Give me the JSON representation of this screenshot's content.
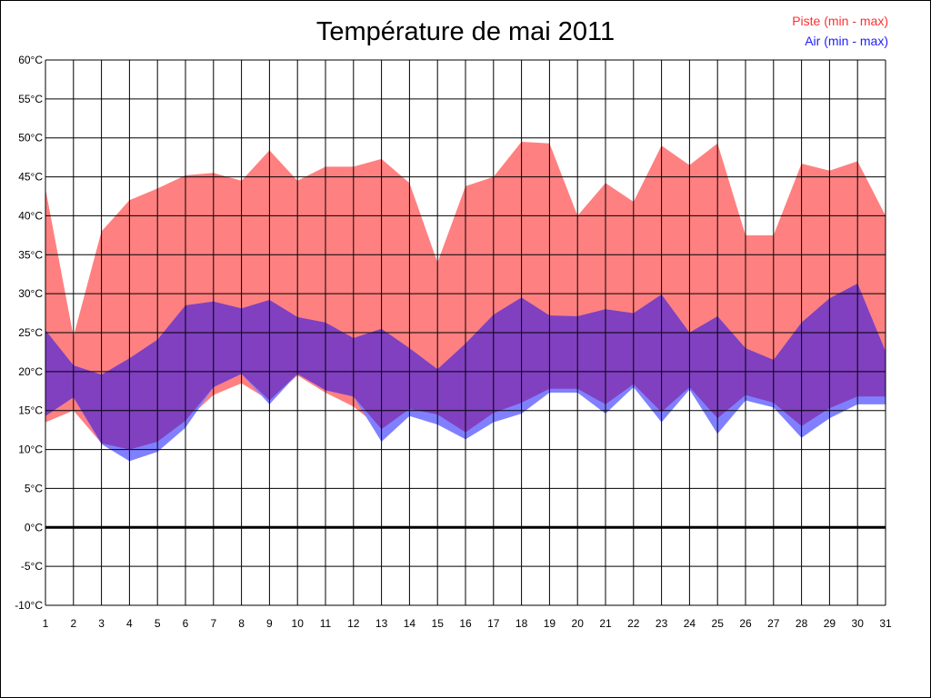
{
  "chart_data": {
    "type": "area",
    "title": "Température de mai 2011",
    "xlabel": "",
    "ylabel": "",
    "x": [
      1,
      2,
      3,
      4,
      5,
      6,
      7,
      8,
      9,
      10,
      11,
      12,
      13,
      14,
      15,
      16,
      17,
      18,
      19,
      20,
      21,
      22,
      23,
      24,
      25,
      26,
      27,
      28,
      29,
      30,
      31
    ],
    "x_tick_labels": [
      "1",
      "2",
      "3",
      "4",
      "5",
      "6",
      "7",
      "8",
      "9",
      "10",
      "11",
      "12",
      "13",
      "14",
      "15",
      "16",
      "17",
      "18",
      "19",
      "20",
      "21",
      "22",
      "23",
      "24",
      "25",
      "26",
      "27",
      "28",
      "29",
      "30",
      "31"
    ],
    "ylim": [
      -10,
      60
    ],
    "y_tick_labels": [
      "60°C",
      "55°C",
      "50°C",
      "45°C",
      "40°C",
      "35°C",
      "30°C",
      "25°C",
      "20°C",
      "15°C",
      "10°C",
      "5°C",
      "0°C",
      "-5°C",
      "-10°C"
    ],
    "grid": true,
    "legend_position": "top-right",
    "series": [
      {
        "name": "Piste (min - max)",
        "color": "#ff8080",
        "min": [
          13.5,
          15.0,
          10.8,
          10.0,
          11.0,
          13.7,
          17.0,
          18.5,
          16.3,
          19.5,
          17.3,
          15.5,
          12.6,
          15.2,
          14.5,
          12.2,
          14.7,
          16.0,
          17.8,
          17.8,
          15.8,
          18.4,
          14.8,
          18.0,
          14.0,
          17.0,
          16.0,
          13.0,
          15.3,
          16.8,
          16.8
        ],
        "max": [
          43.5,
          24.5,
          38.0,
          42.0,
          43.5,
          45.2,
          45.5,
          44.5,
          48.4,
          44.5,
          46.3,
          46.3,
          47.3,
          44.2,
          34.0,
          43.8,
          45.0,
          49.5,
          49.3,
          40.0,
          44.2,
          41.8,
          49.0,
          46.5,
          49.3,
          37.5,
          37.5,
          46.7,
          45.8,
          47.0,
          40.0
        ]
      },
      {
        "name": "Air (min - max)",
        "color": "#8080ff",
        "min": [
          14.3,
          16.7,
          10.7,
          8.5,
          9.7,
          12.8,
          18.0,
          19.7,
          15.8,
          19.7,
          17.6,
          16.8,
          11.0,
          14.3,
          13.2,
          11.3,
          13.5,
          14.6,
          17.3,
          17.3,
          14.6,
          18.0,
          13.5,
          17.7,
          12.0,
          16.3,
          15.4,
          11.5,
          14.0,
          15.8,
          15.8
        ],
        "max": [
          25.3,
          20.8,
          19.6,
          21.7,
          24.1,
          28.5,
          29.0,
          28.1,
          29.2,
          27.0,
          26.3,
          24.3,
          25.5,
          23.0,
          20.3,
          23.6,
          27.3,
          29.5,
          27.2,
          27.1,
          28.0,
          27.5,
          29.9,
          25.0,
          27.1,
          23.0,
          21.5,
          26.3,
          29.4,
          31.3,
          22.6
        ]
      }
    ],
    "overlap_color": "#8040c0",
    "zero_line": true
  }
}
